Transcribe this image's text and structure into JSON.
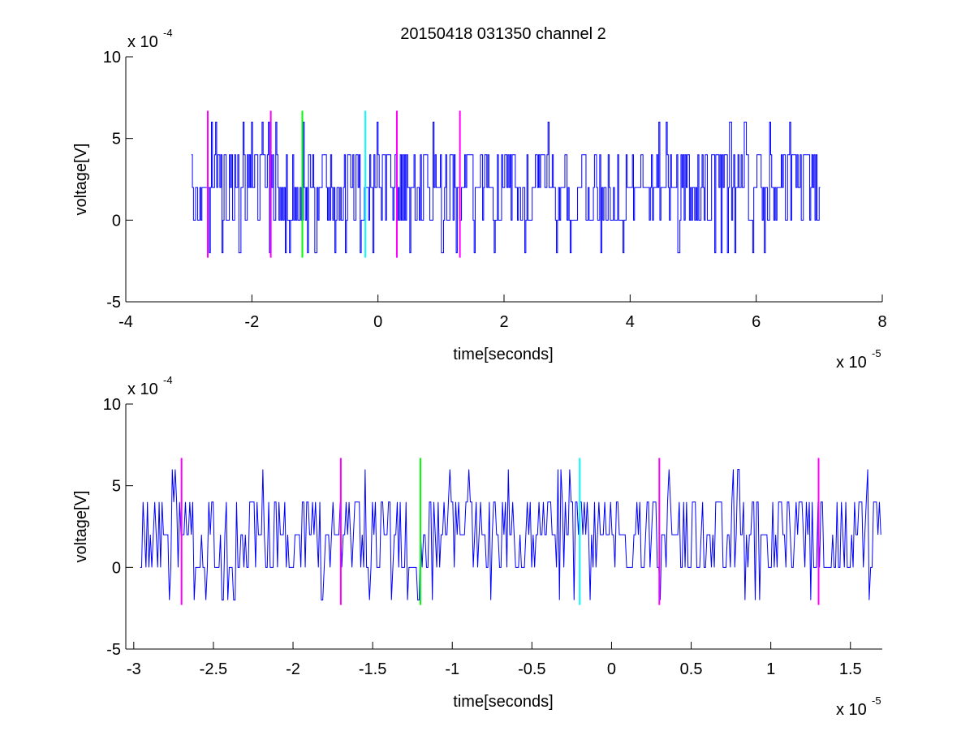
{
  "figure": {
    "title": "20150418 031350 channel 2"
  },
  "chart_data": [
    {
      "type": "line",
      "panel": "top",
      "title": "20150418 031350 channel 2",
      "xlabel": "time[seconds]",
      "ylabel": "voltage[V]",
      "x_scale_label": "x 10",
      "x_scale_exponent": "-5",
      "y_scale_label": "x 10",
      "y_scale_exponent": "-4",
      "xlim": [
        -4,
        8
      ],
      "ylim": [
        -5,
        10
      ],
      "xticks": [
        -4,
        -2,
        0,
        2,
        4,
        6,
        8
      ],
      "yticks": [
        -5,
        0,
        5,
        10
      ],
      "xtick_labels": [
        "-4",
        "-2",
        "0",
        "2",
        "4",
        "6",
        "8"
      ],
      "ytick_labels": [
        "-5",
        "0",
        "5",
        "10"
      ],
      "grid": false,
      "signal": {
        "color": "#0000ff",
        "x_start": -2.96,
        "x_end": 7.0,
        "levels": [
          0,
          2,
          4
        ],
        "occasional_peaks": [
          6,
          -2
        ]
      },
      "markers": [
        {
          "x": -2.7,
          "color": "#ff00ff",
          "y_bottom": -2.3,
          "y_top": 6.7
        },
        {
          "x": -1.7,
          "color": "#ff00ff",
          "y_bottom": -2.3,
          "y_top": 6.7
        },
        {
          "x": -1.2,
          "color": "#00ff00",
          "y_bottom": -2.3,
          "y_top": 6.7
        },
        {
          "x": -0.2,
          "color": "#00ffff",
          "y_bottom": -2.3,
          "y_top": 6.7
        },
        {
          "x": 0.3,
          "color": "#ff00ff",
          "y_bottom": -2.3,
          "y_top": 6.7
        },
        {
          "x": 1.3,
          "color": "#ff00ff",
          "y_bottom": -2.3,
          "y_top": 6.7
        }
      ]
    },
    {
      "type": "line",
      "panel": "bottom",
      "xlabel": "time[seconds]",
      "ylabel": "voltage[V]",
      "x_scale_label": "x 10",
      "x_scale_exponent": "-5",
      "y_scale_label": "x 10",
      "y_scale_exponent": "-4",
      "xlim": [
        -3.05,
        1.7
      ],
      "ylim": [
        -5,
        10
      ],
      "xticks": [
        -3,
        -2.5,
        -2,
        -1.5,
        -1,
        -0.5,
        0,
        0.5,
        1,
        1.5
      ],
      "yticks": [
        -5,
        0,
        5,
        10
      ],
      "xtick_labels": [
        "-3",
        "-2.5",
        "-2",
        "-1.5",
        "-1",
        "-0.5",
        "0",
        "0.5",
        "1",
        "1.5"
      ],
      "ytick_labels": [
        "-5",
        "0",
        "5",
        "10"
      ],
      "grid": false,
      "signal": {
        "color": "#0000ff",
        "x_start": -2.96,
        "x_end": 1.7,
        "levels": [
          0,
          2,
          4
        ],
        "occasional_peaks": [
          6,
          -2
        ]
      },
      "markers": [
        {
          "x": -2.7,
          "color": "#ff00ff",
          "y_bottom": -2.3,
          "y_top": 6.7
        },
        {
          "x": -1.7,
          "color": "#ff00ff",
          "y_bottom": -2.3,
          "y_top": 6.7
        },
        {
          "x": -1.2,
          "color": "#00ff00",
          "y_bottom": -2.3,
          "y_top": 6.7
        },
        {
          "x": -0.2,
          "color": "#00ffff",
          "y_bottom": -2.3,
          "y_top": 6.7
        },
        {
          "x": 0.3,
          "color": "#ff00ff",
          "y_bottom": -2.3,
          "y_top": 6.7
        },
        {
          "x": 1.3,
          "color": "#ff00ff",
          "y_bottom": -2.3,
          "y_top": 6.7
        }
      ]
    }
  ]
}
